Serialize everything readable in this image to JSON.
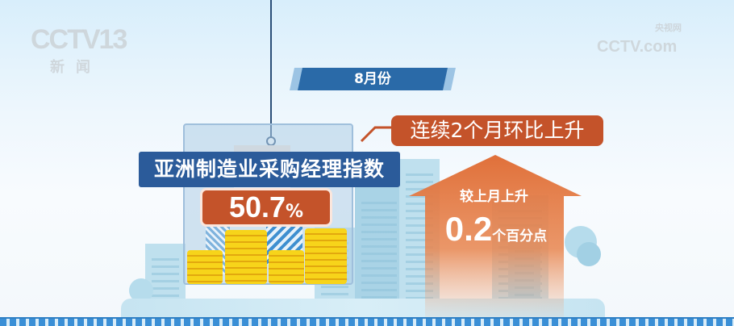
{
  "watermarks": {
    "left_logo": "CCTV13",
    "left_sub": "新闻",
    "right_logo": "CCTV.com",
    "right_sub": "央视网"
  },
  "period_label": "8月份",
  "index_title": "亚洲制造业采购经理指数",
  "index_value": "50.7",
  "index_unit": "%",
  "trend_callout": "连续2个月环比上升",
  "change": {
    "label": "较上月上升",
    "value": "0.2",
    "unit": "个百分点"
  },
  "colors": {
    "blue": "#2b5b9a",
    "orange": "#c4532a",
    "arrow": "#e0703a"
  }
}
